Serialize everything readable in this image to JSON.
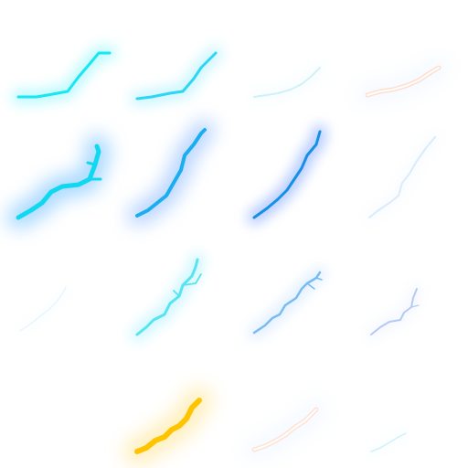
{
  "sprites": [
    {
      "id": "r0c0",
      "color": "#18E6F2",
      "glow": "#7FF6FF",
      "opacity": 1.0,
      "style": "solid"
    },
    {
      "id": "r0c1",
      "color": "#18D2F2",
      "glow": "#8EEBFF",
      "opacity": 0.9,
      "style": "solid"
    },
    {
      "id": "r0c2",
      "color": "#A9E6F5",
      "glow": "#D9F4FF",
      "opacity": 0.55,
      "style": "solid"
    },
    {
      "id": "r0c3",
      "color": "#FFD3BE",
      "glow": "#E6F2FF",
      "opacity": 0.75,
      "style": "outline"
    },
    {
      "id": "r1c0",
      "color": "#10D8F0",
      "glow": "#5FB8FF",
      "opacity": 1.0,
      "style": "solid"
    },
    {
      "id": "r1c1",
      "color": "#1AAEEE",
      "glow": "#6DA7FF",
      "opacity": 1.0,
      "style": "solid"
    },
    {
      "id": "r1c2",
      "color": "#1590E6",
      "glow": "#6D98FF",
      "opacity": 1.0,
      "style": "solid"
    },
    {
      "id": "r1c3",
      "color": "#BFE0F8",
      "glow": "#E4F0FF",
      "opacity": 0.6,
      "style": "solid"
    },
    {
      "id": "r2c0",
      "color": "#CFEFFA",
      "glow": "#EEF8FF",
      "opacity": 0.5,
      "style": "solid"
    },
    {
      "id": "r2c1",
      "color": "#4CE3F2",
      "glow": "#9FEFFF",
      "opacity": 0.95,
      "style": "solid"
    },
    {
      "id": "r2c2",
      "color": "#6AB4F2",
      "glow": "#B9DAFF",
      "opacity": 0.9,
      "style": "solid"
    },
    {
      "id": "r2c3",
      "color": "#9DB8F2",
      "glow": "#DCE7FF",
      "opacity": 0.75,
      "style": "solid"
    },
    {
      "id": "r3c0",
      "color": "#FFFFFF",
      "glow": "#FFFFFF",
      "opacity": 0.0,
      "style": "empty"
    },
    {
      "id": "r3c1",
      "color": "#FFC400",
      "glow": "#FFE38A",
      "opacity": 1.0,
      "style": "solid"
    },
    {
      "id": "r3c2",
      "color": "#FFD9C6",
      "glow": "#E6F2FF",
      "opacity": 0.75,
      "style": "outline"
    },
    {
      "id": "r3c3",
      "color": "#A6E9F5",
      "glow": "#E3F7FF",
      "opacity": 0.55,
      "style": "solid"
    }
  ]
}
